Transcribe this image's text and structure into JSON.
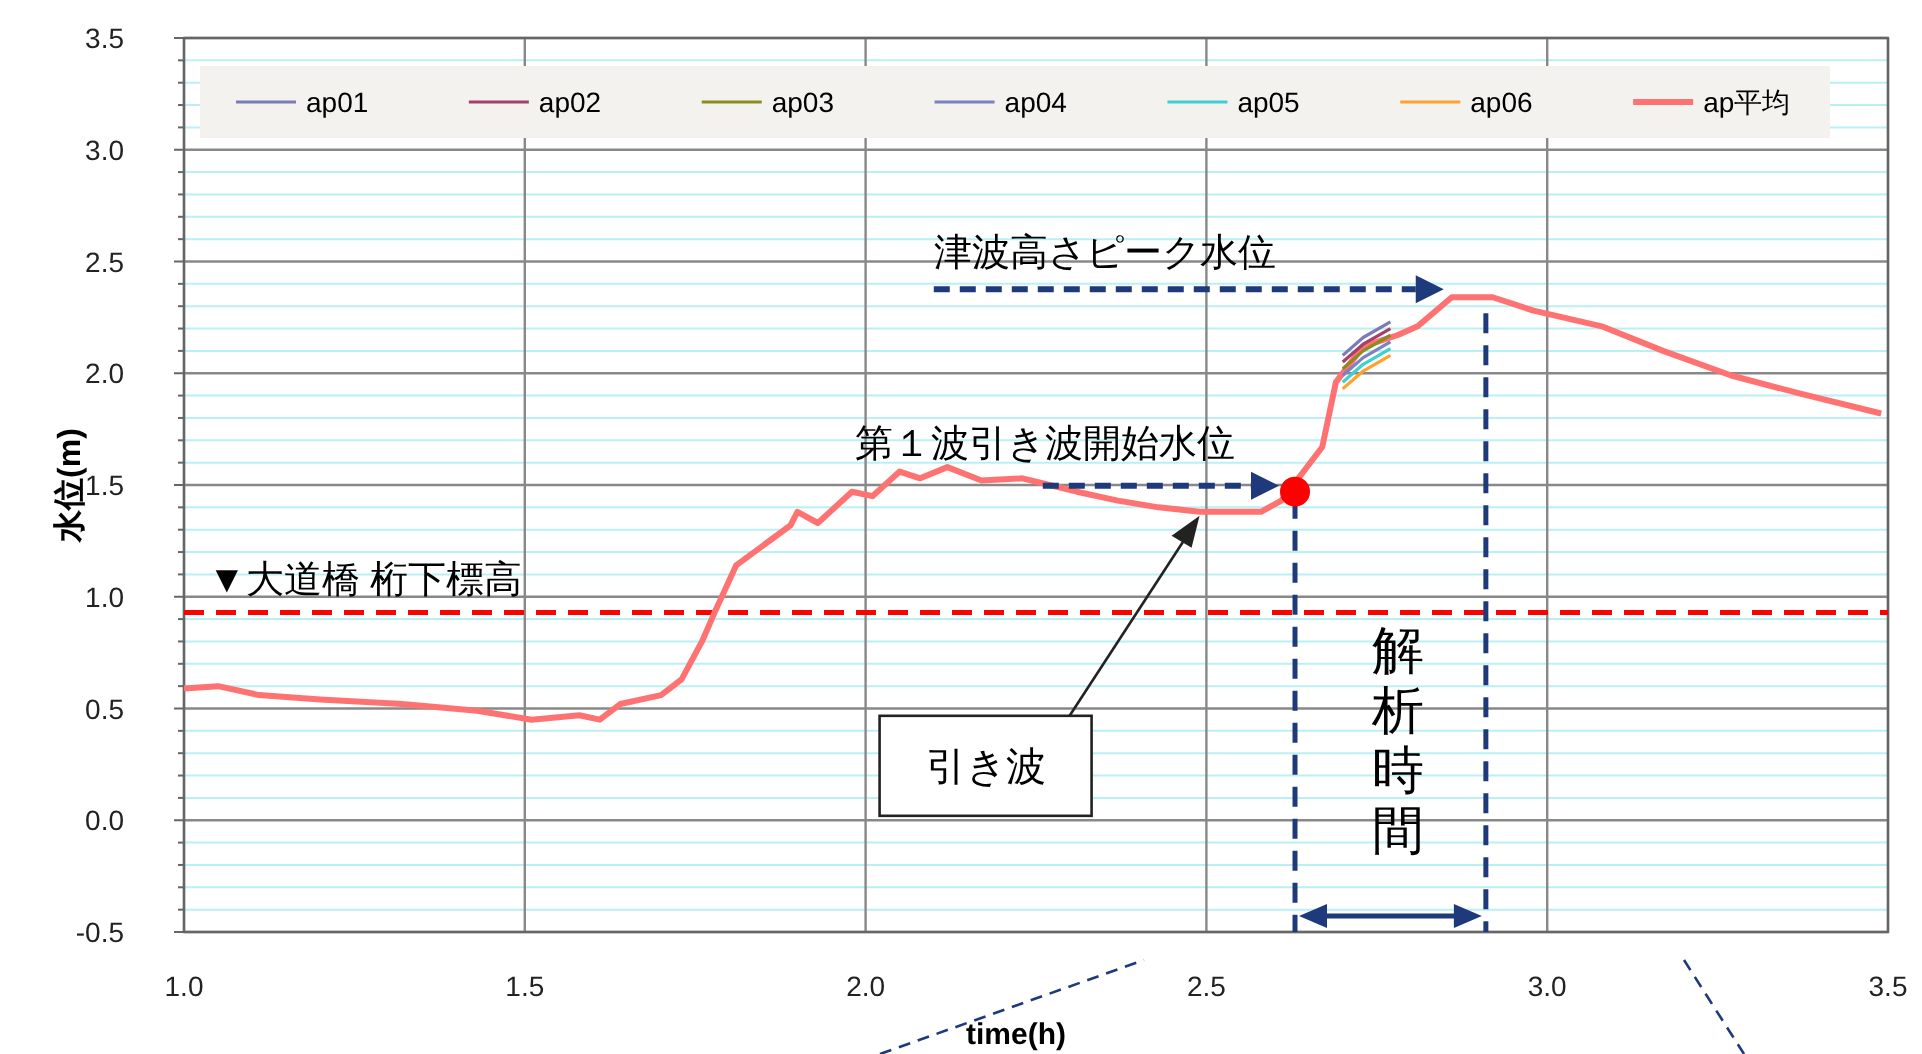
{
  "chart_data": {
    "type": "line",
    "xlabel": "time(h)",
    "ylabel": "水位(m)",
    "xlim": [
      1.0,
      3.5
    ],
    "ylim": [
      -0.5,
      3.5
    ],
    "xticks": [
      {
        "value": 1.0,
        "label": "1.0"
      },
      {
        "value": 1.5,
        "label": "1.5"
      },
      {
        "value": 2.0,
        "label": "2.0"
      },
      {
        "value": 2.5,
        "label": "2.5"
      },
      {
        "value": 3.0,
        "label": "3.0"
      },
      {
        "value": 3.5,
        "label": "3.5"
      }
    ],
    "yticks": [
      {
        "value": -0.5,
        "label": "-0.5"
      },
      {
        "value": -0.4,
        "label": null
      },
      {
        "value": -0.3,
        "label": null
      },
      {
        "value": -0.2,
        "label": null
      },
      {
        "value": -0.1,
        "label": null
      },
      {
        "value": 0.0,
        "label": "0.0"
      },
      {
        "value": 0.1,
        "label": null
      },
      {
        "value": 0.2,
        "label": null
      },
      {
        "value": 0.3,
        "label": null
      },
      {
        "value": 0.4,
        "label": null
      },
      {
        "value": 0.5,
        "label": "0.5"
      },
      {
        "value": 0.6,
        "label": null
      },
      {
        "value": 0.7,
        "label": null
      },
      {
        "value": 0.8,
        "label": null
      },
      {
        "value": 0.9,
        "label": null
      },
      {
        "value": 1.0,
        "label": "1.0"
      },
      {
        "value": 1.1,
        "label": null
      },
      {
        "value": 1.2,
        "label": null
      },
      {
        "value": 1.3,
        "label": null
      },
      {
        "value": 1.4,
        "label": null
      },
      {
        "value": 1.5,
        "label": "1.5"
      },
      {
        "value": 1.6,
        "label": null
      },
      {
        "value": 1.7,
        "label": null
      },
      {
        "value": 1.8,
        "label": null
      },
      {
        "value": 1.9,
        "label": null
      },
      {
        "value": 2.0,
        "label": "2.0"
      },
      {
        "value": 2.1,
        "label": null
      },
      {
        "value": 2.2,
        "label": null
      },
      {
        "value": 2.3,
        "label": null
      },
      {
        "value": 2.4,
        "label": null
      },
      {
        "value": 2.5,
        "label": "2.5"
      },
      {
        "value": 2.6,
        "label": null
      },
      {
        "value": 2.7,
        "label": null
      },
      {
        "value": 2.8,
        "label": null
      },
      {
        "value": 2.9,
        "label": null
      },
      {
        "value": 3.0,
        "label": "3.0"
      },
      {
        "value": 3.1,
        "label": null
      },
      {
        "value": 3.2,
        "label": null
      },
      {
        "value": 3.3,
        "label": null
      },
      {
        "value": 3.4,
        "label": null
      },
      {
        "value": 3.5,
        "label": "3.5"
      }
    ],
    "grid": true,
    "legend": "top",
    "marker": "none",
    "line_style": "solid",
    "series": [
      {
        "name": "ap01",
        "color": "#7b7bb5",
        "x": [
          2.7,
          2.73,
          2.77
        ],
        "values": [
          2.08,
          2.16,
          2.23
        ]
      },
      {
        "name": "ap02",
        "color": "#a3406b",
        "x": [
          2.7,
          2.73,
          2.77
        ],
        "values": [
          2.05,
          2.13,
          2.2
        ]
      },
      {
        "name": "ap03",
        "color": "#8c8c1e",
        "x": [
          2.7,
          2.73,
          2.77
        ],
        "values": [
          2.02,
          2.1,
          2.17
        ]
      },
      {
        "name": "ap04",
        "color": "#7f7fc4",
        "x": [
          2.7,
          2.73,
          2.77
        ],
        "values": [
          1.99,
          2.07,
          2.14
        ]
      },
      {
        "name": "ap05",
        "color": "#3fd0d0",
        "x": [
          2.7,
          2.73,
          2.77
        ],
        "values": [
          1.96,
          2.04,
          2.11
        ]
      },
      {
        "name": "ap06",
        "color": "#ffa030",
        "x": [
          2.7,
          2.73,
          2.77
        ],
        "values": [
          1.93,
          2.01,
          2.08
        ]
      },
      {
        "name": "ap平均",
        "color": "#ff7272",
        "x": [
          1.0,
          1.05,
          1.11,
          1.2,
          1.32,
          1.43,
          1.51,
          1.58,
          1.61,
          1.64,
          1.7,
          1.73,
          1.76,
          1.78,
          1.81,
          1.85,
          1.89,
          1.9,
          1.93,
          1.98,
          2.01,
          2.05,
          2.08,
          2.12,
          2.17,
          2.23,
          2.27,
          2.31,
          2.37,
          2.43,
          2.49,
          2.53,
          2.58,
          2.61,
          2.67,
          2.69,
          2.73,
          2.78,
          2.81,
          2.86,
          2.92,
          2.98,
          3.08,
          3.17,
          3.27,
          3.37,
          3.49
        ],
        "values": [
          0.59,
          0.6,
          0.56,
          0.54,
          0.52,
          0.49,
          0.45,
          0.47,
          0.45,
          0.52,
          0.56,
          0.63,
          0.8,
          0.94,
          1.14,
          1.23,
          1.32,
          1.38,
          1.33,
          1.47,
          1.45,
          1.56,
          1.53,
          1.58,
          1.52,
          1.53,
          1.5,
          1.47,
          1.43,
          1.4,
          1.38,
          1.38,
          1.38,
          1.43,
          1.67,
          1.96,
          2.12,
          2.17,
          2.21,
          2.34,
          2.34,
          2.28,
          2.21,
          2.1,
          1.99,
          1.91,
          1.82
        ]
      },
      {
        "type": "scatter",
        "marker": "circle",
        "color": "#ff0000",
        "x": [
          2.63
        ],
        "values": [
          1.47
        ]
      }
    ],
    "ref_lines": [
      {
        "axis": "y",
        "value": 0.93,
        "label": "▼大道橋 桁下標高",
        "color": "#ff0000",
        "line_style": "dashed"
      },
      {
        "axis": "x",
        "value": 2.63,
        "color": "#1f3a7a",
        "line_style": "dashed"
      },
      {
        "axis": "x",
        "value": 2.91,
        "color": "#1f3a7a",
        "line_style": "dashed"
      }
    ],
    "annotations": [
      {
        "text": "第１波引き波開始水位",
        "x": 2.63,
        "y": 1.47
      },
      "津波高さピーク水位",
      "引き波",
      "解析時間"
    ]
  }
}
